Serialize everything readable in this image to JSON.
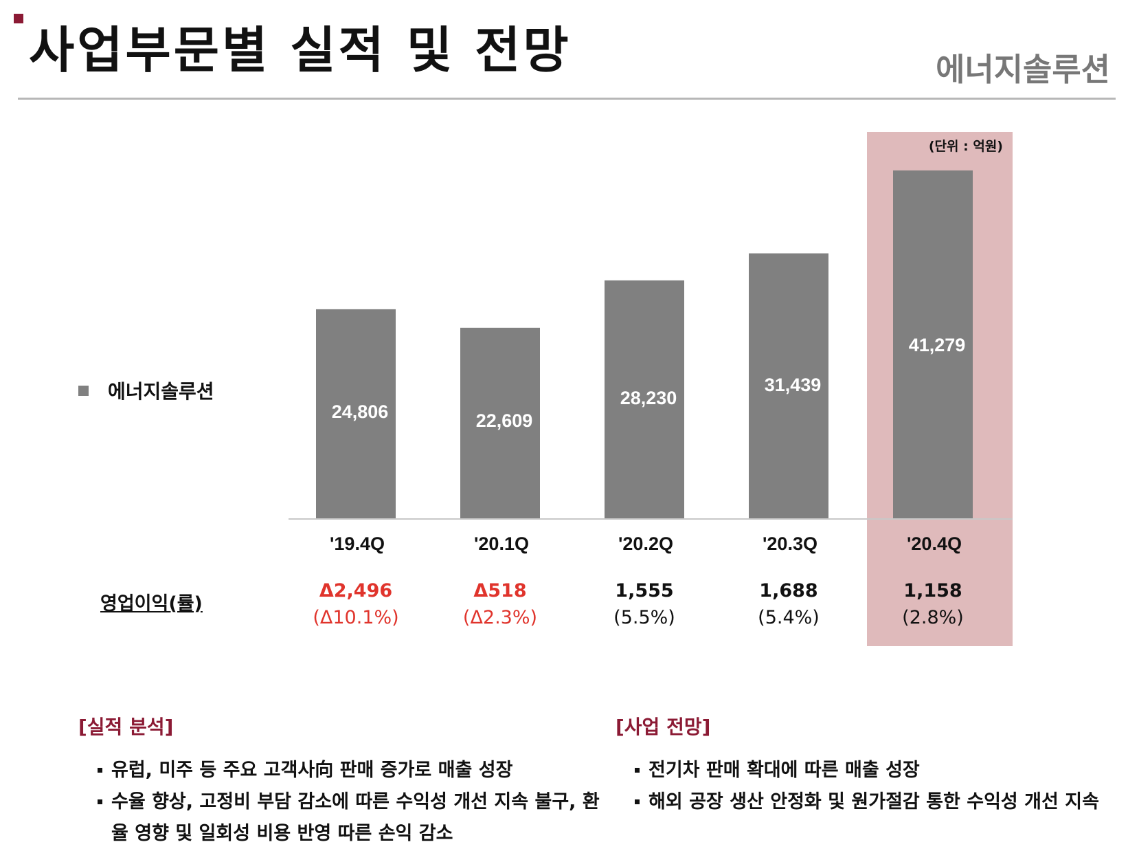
{
  "header": {
    "title": "사업부문별 실적 및 전망",
    "subtitle": "에너지솔루션"
  },
  "unit_label": "(단위 : 억원)",
  "legend_label": "에너지솔루션",
  "chart_data": {
    "type": "bar",
    "categories": [
      "'19.4Q",
      "'20.1Q",
      "'20.2Q",
      "'20.3Q",
      "'20.4Q"
    ],
    "series": [
      {
        "name": "에너지솔루션",
        "values": [
          24806,
          22609,
          28230,
          31439,
          41279
        ]
      }
    ],
    "value_labels": [
      "24,806",
      "22,609",
      "28,230",
      "31,439",
      "41,279"
    ],
    "bar_color": "#808080",
    "highlight_category": "'20.4Q",
    "highlight_color": "#dfbabb",
    "ylim": [
      0,
      45000
    ]
  },
  "operating_profit": {
    "label": "영업이익(률)",
    "items": [
      {
        "value": "Δ2,496",
        "rate": "(Δ10.1%)",
        "negative": true
      },
      {
        "value": "Δ518",
        "rate": "(Δ2.3%)",
        "negative": true
      },
      {
        "value": "1,555",
        "rate": "(5.5%)",
        "negative": false
      },
      {
        "value": "1,688",
        "rate": "(5.4%)",
        "negative": false
      },
      {
        "value": "1,158",
        "rate": "(2.8%)",
        "negative": false
      }
    ]
  },
  "analysis": {
    "heading": "[실적 분석]",
    "bullets": [
      "유럽, 미주 등 주요 고객사向 판매 증가로 매출 성장",
      "수율 향상, 고정비 부담 감소에 따른 수익성 개선 지속 불구, 환율 영향 및 일회성 비용 반영 따른 손익 감소"
    ]
  },
  "outlook": {
    "heading": "[사업 전망]",
    "bullets": [
      "전기차 판매 확대에 따른 매출 성장",
      "해외 공장 생산 안정화 및 원가절감 통한 수익성 개선 지속"
    ]
  },
  "colors": {
    "accent": "#8b1a34",
    "negative": "#e0342c",
    "bar": "#808080"
  }
}
